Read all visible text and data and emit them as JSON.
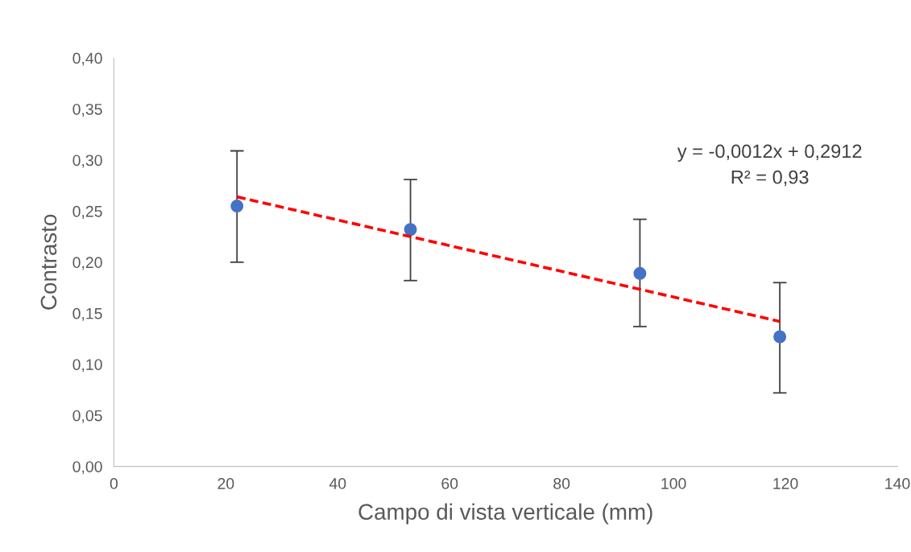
{
  "chart_data": {
    "type": "scatter",
    "xlabel": "Campo di vista verticale (mm)",
    "ylabel": "Contrasto",
    "xlim": [
      0,
      140
    ],
    "xticks": [
      0,
      20,
      40,
      60,
      80,
      100,
      120,
      140
    ],
    "ylim": [
      0,
      0.4
    ],
    "yticks": [
      {
        "value": 0,
        "label": "0,00"
      },
      {
        "value": 0.05,
        "label": "0,05"
      },
      {
        "value": 0.1,
        "label": "0,10"
      },
      {
        "value": 0.15,
        "label": "0,15"
      },
      {
        "value": 0.2,
        "label": "0,20"
      },
      {
        "value": 0.25,
        "label": "0,25"
      },
      {
        "value": 0.3,
        "label": "0,30"
      },
      {
        "value": 0.35,
        "label": "0,35"
      },
      {
        "value": 0.4,
        "label": "0,40"
      }
    ],
    "grid": false,
    "legend": false,
    "marker": "circle",
    "series": [
      {
        "color": "#4472c4",
        "x": [
          22,
          53,
          94,
          119
        ],
        "values": [
          0.255,
          0.232,
          0.189,
          0.127
        ],
        "errors": [
          [
            0.2,
            0.309
          ],
          [
            0.182,
            0.281
          ],
          [
            0.137,
            0.242
          ],
          [
            0.072,
            0.18
          ]
        ]
      },
      {
        "type": "line",
        "color": "#ff0000",
        "line_style": "dashed",
        "marker": "none",
        "x": [
          22,
          119
        ],
        "values": [
          0.264,
          0.142
        ]
      }
    ],
    "annotations": [
      "y = -0,0012x + 0,2912\nR² = 0,93"
    ]
  }
}
